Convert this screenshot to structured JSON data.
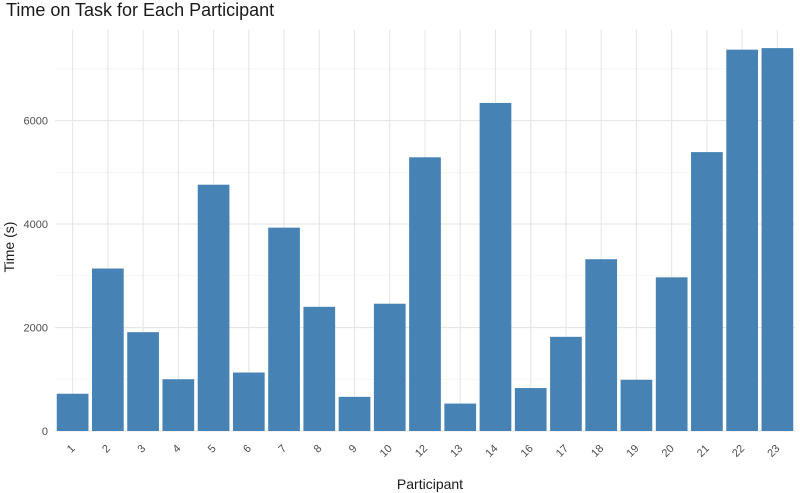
{
  "chart_data": {
    "type": "bar",
    "title": "Time on Task for Each Participant",
    "xlabel": "Participant",
    "ylabel": "Time (s)",
    "categories": [
      "1",
      "2",
      "3",
      "4",
      "5",
      "6",
      "7",
      "8",
      "9",
      "10",
      "12",
      "13",
      "14",
      "16",
      "17",
      "18",
      "19",
      "20",
      "21",
      "22",
      "23"
    ],
    "values": [
      720,
      3140,
      1910,
      1000,
      4760,
      1130,
      3930,
      2400,
      660,
      2460,
      5290,
      530,
      6340,
      830,
      1820,
      3320,
      990,
      2970,
      5390,
      7370,
      7400
    ],
    "ylim": [
      0,
      7750
    ],
    "yticks": [
      0,
      2000,
      4000,
      6000
    ],
    "grid": true,
    "bar_color": "#4682B4",
    "legend": "none"
  }
}
